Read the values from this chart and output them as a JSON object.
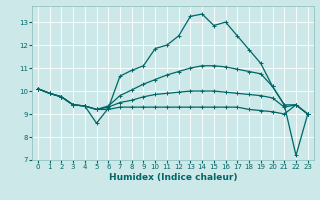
{
  "xlabel": "Humidex (Indice chaleur)",
  "background_color": "#cce8e8",
  "grid_color": "#ffffff",
  "line_color": "#006666",
  "xlim": [
    -0.5,
    23.5
  ],
  "ylim": [
    7,
    13.7
  ],
  "yticks": [
    7,
    8,
    9,
    10,
    11,
    12,
    13
  ],
  "xticks": [
    0,
    1,
    2,
    3,
    4,
    5,
    6,
    7,
    8,
    9,
    10,
    11,
    12,
    13,
    14,
    15,
    16,
    17,
    18,
    19,
    20,
    21,
    22,
    23
  ],
  "lines": [
    {
      "x": [
        0,
        1,
        2,
        3,
        4,
        5,
        6,
        7,
        8,
        9,
        10,
        11,
        12,
        13,
        14,
        15,
        16,
        17,
        18,
        19,
        20,
        21,
        22,
        23
      ],
      "y": [
        10.1,
        9.9,
        9.75,
        9.4,
        9.35,
        8.6,
        9.25,
        10.65,
        10.9,
        11.1,
        11.85,
        12.0,
        12.4,
        13.25,
        13.35,
        12.85,
        13.0,
        12.4,
        11.8,
        11.2,
        10.2,
        9.4,
        7.2,
        9.0
      ]
    },
    {
      "x": [
        0,
        1,
        2,
        3,
        4,
        5,
        6,
        7,
        8,
        9,
        10,
        11,
        12,
        13,
        14,
        15,
        16,
        17,
        18,
        19,
        20,
        21,
        22,
        23
      ],
      "y": [
        10.1,
        9.9,
        9.75,
        9.4,
        9.35,
        9.2,
        9.35,
        9.8,
        10.05,
        10.3,
        10.5,
        10.7,
        10.85,
        11.0,
        11.1,
        11.1,
        11.05,
        10.95,
        10.85,
        10.75,
        10.2,
        9.4,
        9.4,
        9.0
      ]
    },
    {
      "x": [
        0,
        1,
        2,
        3,
        4,
        5,
        6,
        7,
        8,
        9,
        10,
        11,
        12,
        13,
        14,
        15,
        16,
        17,
        18,
        19,
        20,
        21,
        22,
        23
      ],
      "y": [
        10.1,
        9.9,
        9.75,
        9.4,
        9.35,
        9.2,
        9.3,
        9.5,
        9.6,
        9.75,
        9.85,
        9.9,
        9.95,
        10.0,
        10.0,
        10.0,
        9.95,
        9.9,
        9.85,
        9.8,
        9.7,
        9.3,
        9.4,
        9.0
      ]
    },
    {
      "x": [
        0,
        1,
        2,
        3,
        4,
        5,
        6,
        7,
        8,
        9,
        10,
        11,
        12,
        13,
        14,
        15,
        16,
        17,
        18,
        19,
        20,
        21,
        22,
        23
      ],
      "y": [
        10.1,
        9.9,
        9.75,
        9.4,
        9.35,
        9.2,
        9.2,
        9.3,
        9.3,
        9.3,
        9.3,
        9.3,
        9.3,
        9.3,
        9.3,
        9.3,
        9.3,
        9.3,
        9.2,
        9.15,
        9.1,
        9.0,
        9.4,
        9.0
      ]
    }
  ],
  "markersize": 3,
  "linewidth": 0.9,
  "label_fontsize": 6.5,
  "tick_fontsize": 5.0
}
